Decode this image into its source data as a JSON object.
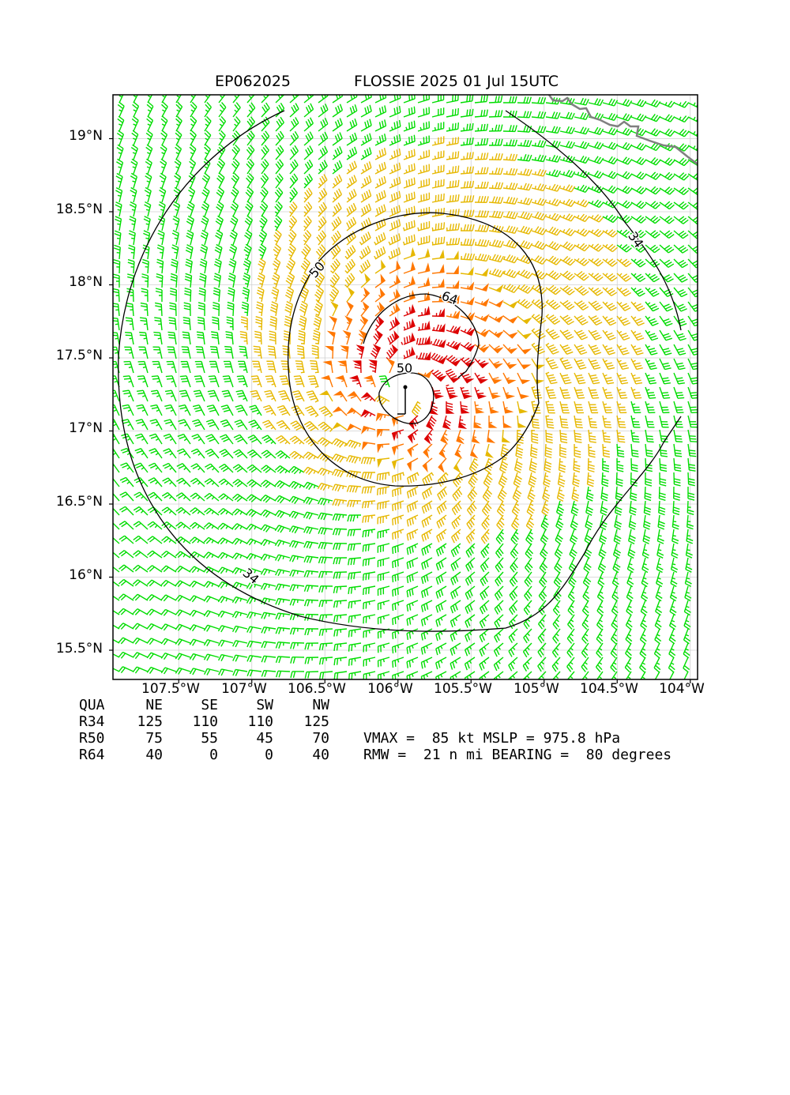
{
  "title_left": "EP062025",
  "title_right": "FLOSSIE 2025 01 Jul 15UTC",
  "lat_ticks": [
    "19°N",
    "18.5°N",
    "18°N",
    "17.5°N",
    "17°N",
    "16.5°N",
    "16°N",
    "15.5°N"
  ],
  "lon_ticks": [
    "107.5°W",
    "107°W",
    "106.5°W",
    "106°W",
    "105.5°W",
    "105°W",
    "104.5°W",
    "104°W"
  ],
  "contour_labels": {
    "r34a": "34",
    "r34b": "34",
    "r50a": "50",
    "r50b": "50",
    "r64": "64"
  },
  "colors": {
    "lt34": "#00dd00",
    "kt34": "#e6b800",
    "kt50": "#ff7700",
    "kt64": "#dd0000",
    "coast": "#808080"
  },
  "wind_table": {
    "header": [
      "QUA",
      "NE",
      "SE",
      "SW",
      "NW"
    ],
    "rows": [
      {
        "label": "R34",
        "values": [
          "125",
          "110",
          "110",
          "125"
        ]
      },
      {
        "label": "R50",
        "values": [
          "75",
          "55",
          "45",
          "70"
        ]
      },
      {
        "label": "R64",
        "values": [
          "40",
          "0",
          "0",
          "40"
        ]
      }
    ]
  },
  "storm_info": {
    "line1": "VMAX =  85 kt MSLP = 975.8 hPa",
    "line2": "RMW =  21 n mi BEARING =  80 degrees"
  },
  "map_data": {
    "center": {
      "lat": 17.3,
      "lon": -105.95
    },
    "vmax_kt": 85,
    "extent": {
      "lon_min": -107.95,
      "lon_max": -103.95,
      "lat_min": 15.3,
      "lat_max": 19.3
    }
  }
}
